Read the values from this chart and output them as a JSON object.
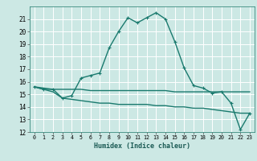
{
  "xlabel": "Humidex (Indice chaleur)",
  "bg_color": "#cce8e4",
  "grid_color": "#b0d8d0",
  "line_color": "#1a7a6e",
  "ylim": [
    12,
    22
  ],
  "xlim": [
    -0.5,
    23.5
  ],
  "yticks": [
    12,
    13,
    14,
    15,
    16,
    17,
    18,
    19,
    20,
    21
  ],
  "xticks": [
    0,
    1,
    2,
    3,
    4,
    5,
    6,
    7,
    8,
    9,
    10,
    11,
    12,
    13,
    14,
    15,
    16,
    17,
    18,
    19,
    20,
    21,
    22,
    23
  ],
  "humidex_x": [
    0,
    1,
    2,
    3,
    4,
    5,
    6,
    7,
    8,
    9,
    10,
    11,
    12,
    13,
    14,
    15,
    16,
    17,
    18,
    19,
    20,
    21,
    22,
    23
  ],
  "humidex_y": [
    15.6,
    15.4,
    15.4,
    14.7,
    14.9,
    16.3,
    16.5,
    16.7,
    18.7,
    20.0,
    21.1,
    20.7,
    21.1,
    21.5,
    21.0,
    19.2,
    17.1,
    15.7,
    15.5,
    15.1,
    15.2,
    14.3,
    12.2,
    13.5
  ],
  "flat_x": [
    0,
    1,
    2,
    3,
    4,
    5,
    6,
    7,
    8,
    9,
    10,
    11,
    12,
    13,
    14,
    15,
    16,
    17,
    18,
    19,
    20,
    21,
    22,
    23
  ],
  "flat_y": [
    15.6,
    15.5,
    15.4,
    15.4,
    15.4,
    15.4,
    15.3,
    15.3,
    15.3,
    15.3,
    15.3,
    15.3,
    15.3,
    15.3,
    15.3,
    15.2,
    15.2,
    15.2,
    15.2,
    15.2,
    15.2,
    15.2,
    15.2,
    15.2
  ],
  "dew_x": [
    0,
    1,
    2,
    3,
    4,
    5,
    6,
    7,
    8,
    9,
    10,
    11,
    12,
    13,
    14,
    15,
    16,
    17,
    18,
    19,
    20,
    21,
    22,
    23
  ],
  "dew_y": [
    15.6,
    15.4,
    15.2,
    14.7,
    14.6,
    14.5,
    14.4,
    14.3,
    14.3,
    14.2,
    14.2,
    14.2,
    14.2,
    14.1,
    14.1,
    14.0,
    14.0,
    13.9,
    13.9,
    13.8,
    13.7,
    13.6,
    13.5,
    13.5
  ]
}
